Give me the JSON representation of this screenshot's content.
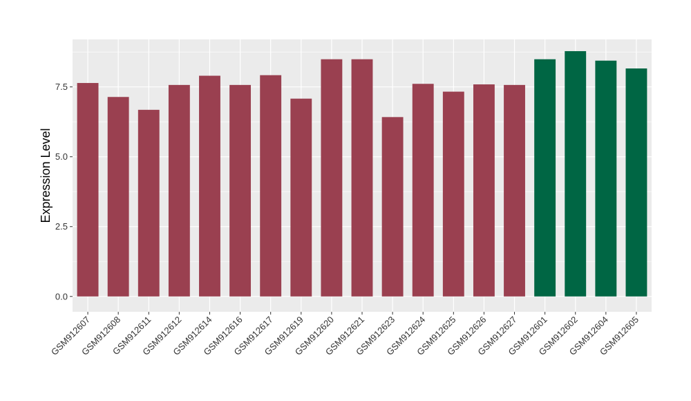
{
  "chart_data": {
    "type": "bar",
    "title": "",
    "xlabel": "",
    "ylabel": "Expression Level",
    "ylim": [
      -0.55,
      9.2
    ],
    "yticks": [
      0.0,
      2.5,
      5.0,
      7.5
    ],
    "ytick_labels": [
      "0.0",
      "2.5",
      "5.0",
      "7.5"
    ],
    "grid": true,
    "legend": "none",
    "categories": [
      "GSM912607",
      "GSM912608",
      "GSM912611",
      "GSM912612",
      "GSM912614",
      "GSM912616",
      "GSM912617",
      "GSM912619",
      "GSM912620",
      "GSM912621",
      "GSM912623",
      "GSM912624",
      "GSM912625",
      "GSM912626",
      "GSM912627",
      "GSM912601",
      "GSM912602",
      "GSM912604",
      "GSM912605"
    ],
    "values": [
      7.64,
      7.14,
      6.68,
      7.57,
      7.9,
      7.57,
      7.92,
      7.08,
      8.49,
      8.49,
      6.42,
      7.61,
      7.33,
      7.59,
      7.57,
      8.49,
      8.78,
      8.44,
      8.16
    ],
    "groups": [
      0,
      0,
      0,
      0,
      0,
      0,
      0,
      0,
      0,
      0,
      0,
      0,
      0,
      0,
      0,
      1,
      1,
      1,
      1
    ],
    "group_colors": [
      "#9A4050",
      "#006644"
    ],
    "panel_color": "#EBEBEB",
    "grid_color": "#FFFFFF"
  }
}
